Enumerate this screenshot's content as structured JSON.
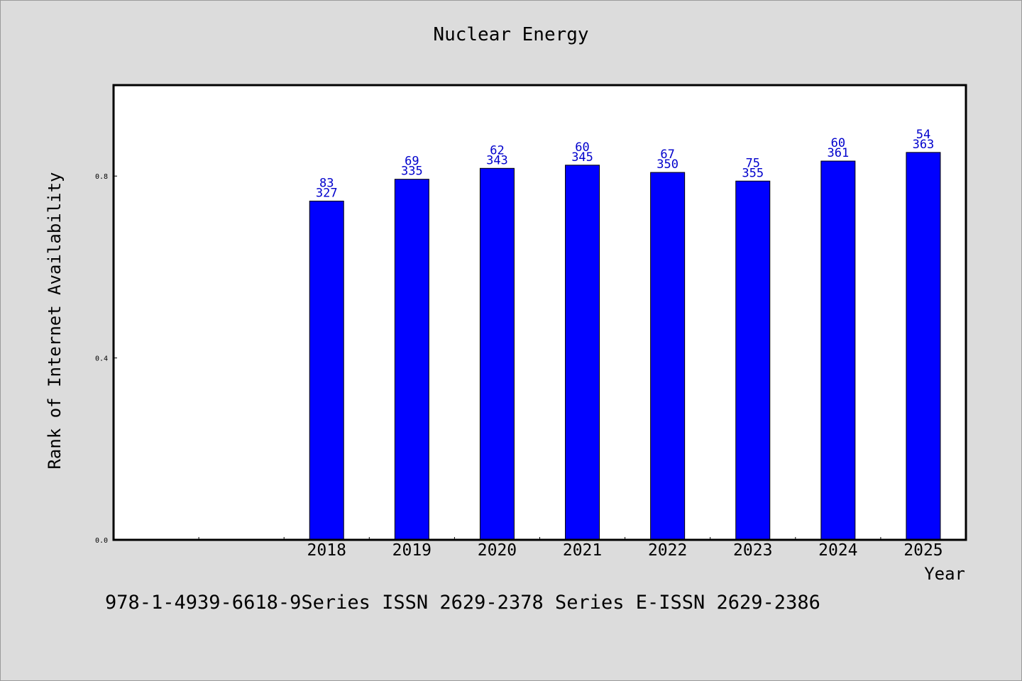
{
  "chart_data": {
    "type": "bar",
    "title": "Nuclear Energy",
    "xlabel": "Year",
    "ylabel": "Rank of Internet Availability",
    "categories": [
      "",
      "",
      "2018",
      "2019",
      "2020",
      "2021",
      "2022",
      "2023",
      "2024",
      "2025"
    ],
    "values": [
      null,
      null,
      0.745,
      0.793,
      0.817,
      0.824,
      0.808,
      0.789,
      0.833,
      0.852
    ],
    "labels_top": [
      "",
      "",
      "83",
      "69",
      "62",
      "60",
      "67",
      "75",
      "60",
      "54"
    ],
    "labels_bottom": [
      "",
      "",
      "327",
      "335",
      "343",
      "345",
      "350",
      "355",
      "361",
      "363"
    ],
    "ylim": [
      0,
      1.0
    ],
    "yticks": [
      "0.0",
      "0.4",
      "0.8"
    ],
    "ytick_values": [
      0,
      0.4,
      0.8
    ],
    "grid": false,
    "legend": "none",
    "bar_color": "#0000ff",
    "label_color": "#0000cc"
  },
  "footer": {
    "text": "978-1-4939-6618-9Series ISSN 2629-2378 Series E-ISSN 2629-2386"
  }
}
